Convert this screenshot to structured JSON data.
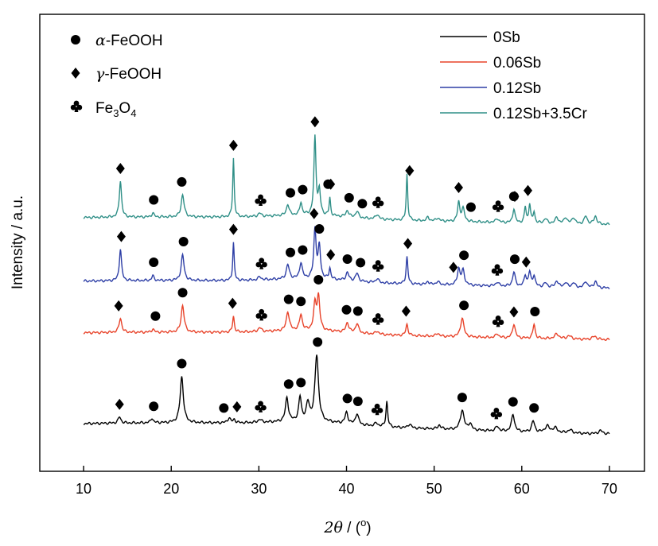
{
  "chart_data": {
    "type": "line",
    "xlabel": "2θ / (°)",
    "xlabel_parts": {
      "var": "2θ",
      "sep": " / (",
      "unit": "o",
      "close": ")"
    },
    "ylabel": "Intensity / a.u.",
    "xlim": [
      5,
      74
    ],
    "x_ticks": [
      "10",
      "20",
      "30",
      "40",
      "50",
      "60",
      "70"
    ],
    "y_ticks_shown": false,
    "legend_position": "top-right",
    "series": [
      {
        "name": "0Sb",
        "color": "#000000",
        "offset": 0,
        "baseline": 18,
        "peaks": [
          {
            "x": 14.1,
            "h": 8,
            "w": 0.18
          },
          {
            "x": 17.8,
            "h": 6,
            "w": 0.15
          },
          {
            "x": 21.2,
            "h": 58,
            "w": 0.22
          },
          {
            "x": 26.6,
            "h": 6,
            "w": 0.2
          },
          {
            "x": 27.2,
            "h": 4,
            "w": 0.15
          },
          {
            "x": 30.1,
            "h": 4,
            "w": 0.2
          },
          {
            "x": 33.2,
            "h": 30,
            "w": 0.2
          },
          {
            "x": 34.7,
            "h": 30,
            "w": 0.18
          },
          {
            "x": 35.6,
            "h": 22,
            "w": 0.22
          },
          {
            "x": 36.6,
            "h": 84,
            "w": 0.24
          },
          {
            "x": 40.0,
            "h": 14,
            "w": 0.2
          },
          {
            "x": 41.2,
            "h": 14,
            "w": 0.2
          },
          {
            "x": 43.4,
            "h": 4,
            "w": 0.2
          },
          {
            "x": 44.6,
            "h": 32,
            "w": 0.12
          },
          {
            "x": 47.2,
            "h": 5,
            "w": 0.2
          },
          {
            "x": 50.6,
            "h": 5,
            "w": 0.2
          },
          {
            "x": 53.2,
            "h": 25,
            "w": 0.25
          },
          {
            "x": 54.1,
            "h": 8,
            "w": 0.2
          },
          {
            "x": 57.2,
            "h": 6,
            "w": 0.2
          },
          {
            "x": 59.0,
            "h": 22,
            "w": 0.2
          },
          {
            "x": 61.3,
            "h": 14,
            "w": 0.2
          },
          {
            "x": 62.9,
            "h": 8,
            "w": 0.3
          },
          {
            "x": 63.8,
            "h": 6,
            "w": 0.3
          },
          {
            "x": 65.5,
            "h": 4,
            "w": 0.3
          },
          {
            "x": 69.0,
            "h": 4,
            "w": 0.3
          }
        ]
      },
      {
        "name": "0.06Sb",
        "color": "#e8432a",
        "offset": 120,
        "baseline": 12,
        "peaks": [
          {
            "x": 14.2,
            "h": 18,
            "w": 0.18
          },
          {
            "x": 17.9,
            "h": 4,
            "w": 0.15
          },
          {
            "x": 21.3,
            "h": 34,
            "w": 0.2
          },
          {
            "x": 27.1,
            "h": 20,
            "w": 0.12
          },
          {
            "x": 30.1,
            "h": 5,
            "w": 0.2
          },
          {
            "x": 33.3,
            "h": 24,
            "w": 0.2
          },
          {
            "x": 34.8,
            "h": 20,
            "w": 0.18
          },
          {
            "x": 36.4,
            "h": 32,
            "w": 0.18
          },
          {
            "x": 36.8,
            "h": 42,
            "w": 0.18
          },
          {
            "x": 40.1,
            "h": 12,
            "w": 0.2
          },
          {
            "x": 41.2,
            "h": 12,
            "w": 0.2
          },
          {
            "x": 43.5,
            "h": 4,
            "w": 0.2
          },
          {
            "x": 46.9,
            "h": 14,
            "w": 0.15
          },
          {
            "x": 50.4,
            "h": 4,
            "w": 0.2
          },
          {
            "x": 53.2,
            "h": 24,
            "w": 0.22
          },
          {
            "x": 57.2,
            "h": 5,
            "w": 0.2
          },
          {
            "x": 59.1,
            "h": 18,
            "w": 0.18
          },
          {
            "x": 61.4,
            "h": 18,
            "w": 0.15
          },
          {
            "x": 64.0,
            "h": 6,
            "w": 0.3
          },
          {
            "x": 65.4,
            "h": 4,
            "w": 0.3
          },
          {
            "x": 68.3,
            "h": 4,
            "w": 0.3
          }
        ]
      },
      {
        "name": "0.12Sb",
        "color": "#2e3fa6",
        "offset": 185,
        "baseline": 12,
        "peaks": [
          {
            "x": 14.2,
            "h": 40,
            "w": 0.15
          },
          {
            "x": 17.9,
            "h": 6,
            "w": 0.15
          },
          {
            "x": 21.3,
            "h": 32,
            "w": 0.2
          },
          {
            "x": 27.1,
            "h": 48,
            "w": 0.1
          },
          {
            "x": 30.1,
            "h": 4,
            "w": 0.2
          },
          {
            "x": 33.3,
            "h": 18,
            "w": 0.2
          },
          {
            "x": 34.8,
            "h": 20,
            "w": 0.18
          },
          {
            "x": 36.4,
            "h": 62,
            "w": 0.16
          },
          {
            "x": 36.9,
            "h": 40,
            "w": 0.16
          },
          {
            "x": 38.1,
            "h": 14,
            "w": 0.12
          },
          {
            "x": 40.1,
            "h": 10,
            "w": 0.2
          },
          {
            "x": 41.2,
            "h": 10,
            "w": 0.2
          },
          {
            "x": 43.5,
            "h": 5,
            "w": 0.2
          },
          {
            "x": 46.9,
            "h": 34,
            "w": 0.12
          },
          {
            "x": 49.3,
            "h": 4,
            "w": 0.15
          },
          {
            "x": 50.4,
            "h": 4,
            "w": 0.2
          },
          {
            "x": 52.8,
            "h": 20,
            "w": 0.18
          },
          {
            "x": 53.3,
            "h": 18,
            "w": 0.2
          },
          {
            "x": 57.2,
            "h": 5,
            "w": 0.2
          },
          {
            "x": 59.1,
            "h": 18,
            "w": 0.18
          },
          {
            "x": 60.4,
            "h": 14,
            "w": 0.15
          },
          {
            "x": 60.9,
            "h": 18,
            "w": 0.15
          },
          {
            "x": 61.4,
            "h": 14,
            "w": 0.15
          },
          {
            "x": 62.7,
            "h": 5,
            "w": 0.2
          },
          {
            "x": 64.0,
            "h": 8,
            "w": 0.2
          },
          {
            "x": 65.0,
            "h": 6,
            "w": 0.2
          },
          {
            "x": 65.9,
            "h": 6,
            "w": 0.2
          },
          {
            "x": 67.3,
            "h": 8,
            "w": 0.2
          },
          {
            "x": 68.4,
            "h": 8,
            "w": 0.2
          }
        ]
      },
      {
        "name": "0.12Sb+3.5Cr",
        "color": "#2f8f87",
        "offset": 265,
        "baseline": 12,
        "peaks": [
          {
            "x": 14.2,
            "h": 46,
            "w": 0.15
          },
          {
            "x": 17.9,
            "h": 5,
            "w": 0.15
          },
          {
            "x": 21.3,
            "h": 28,
            "w": 0.2
          },
          {
            "x": 27.1,
            "h": 74,
            "w": 0.1
          },
          {
            "x": 30.1,
            "h": 4,
            "w": 0.2
          },
          {
            "x": 33.3,
            "h": 14,
            "w": 0.18
          },
          {
            "x": 34.8,
            "h": 16,
            "w": 0.15
          },
          {
            "x": 36.4,
            "h": 98,
            "w": 0.14
          },
          {
            "x": 36.9,
            "h": 30,
            "w": 0.15
          },
          {
            "x": 38.1,
            "h": 22,
            "w": 0.1
          },
          {
            "x": 40.1,
            "h": 8,
            "w": 0.2
          },
          {
            "x": 41.2,
            "h": 8,
            "w": 0.2
          },
          {
            "x": 43.5,
            "h": 6,
            "w": 0.2
          },
          {
            "x": 46.9,
            "h": 58,
            "w": 0.1
          },
          {
            "x": 49.3,
            "h": 5,
            "w": 0.15
          },
          {
            "x": 50.4,
            "h": 4,
            "w": 0.2
          },
          {
            "x": 52.8,
            "h": 24,
            "w": 0.15
          },
          {
            "x": 53.3,
            "h": 16,
            "w": 0.2
          },
          {
            "x": 57.2,
            "h": 5,
            "w": 0.2
          },
          {
            "x": 59.1,
            "h": 18,
            "w": 0.15
          },
          {
            "x": 60.4,
            "h": 20,
            "w": 0.12
          },
          {
            "x": 60.9,
            "h": 24,
            "w": 0.12
          },
          {
            "x": 61.4,
            "h": 14,
            "w": 0.12
          },
          {
            "x": 62.7,
            "h": 6,
            "w": 0.2
          },
          {
            "x": 64.0,
            "h": 8,
            "w": 0.2
          },
          {
            "x": 65.0,
            "h": 8,
            "w": 0.2
          },
          {
            "x": 65.9,
            "h": 8,
            "w": 0.2
          },
          {
            "x": 67.3,
            "h": 10,
            "w": 0.2
          },
          {
            "x": 68.4,
            "h": 10,
            "w": 0.2
          }
        ]
      }
    ],
    "phase_legend": [
      {
        "symbol": "circle",
        "prefix": "α",
        "text": "-FeOOH"
      },
      {
        "symbol": "diamond",
        "prefix": "γ",
        "text": "-FeOOH"
      },
      {
        "symbol": "club",
        "formula": [
          "Fe",
          "3",
          "O",
          "4"
        ]
      }
    ],
    "markers": [
      {
        "series": 0,
        "items": [
          {
            "x": 14.1,
            "s": "diamond"
          },
          {
            "x": 18.0,
            "s": "circle"
          },
          {
            "x": 21.2,
            "s": "circle"
          },
          {
            "x": 26.0,
            "s": "circle"
          },
          {
            "x": 27.5,
            "s": "diamond"
          },
          {
            "x": 30.2,
            "s": "club"
          },
          {
            "x": 33.4,
            "s": "circle"
          },
          {
            "x": 34.8,
            "s": "circle"
          },
          {
            "x": 36.7,
            "s": "circle"
          },
          {
            "x": 40.1,
            "s": "circle"
          },
          {
            "x": 41.3,
            "s": "circle"
          },
          {
            "x": 43.5,
            "s": "club"
          },
          {
            "x": 53.2,
            "s": "circle"
          },
          {
            "x": 57.1,
            "s": "club"
          },
          {
            "x": 59.0,
            "s": "circle"
          },
          {
            "x": 61.4,
            "s": "circle"
          }
        ]
      },
      {
        "series": 1,
        "items": [
          {
            "x": 14.0,
            "s": "diamond"
          },
          {
            "x": 18.2,
            "s": "circle"
          },
          {
            "x": 21.3,
            "s": "circle"
          },
          {
            "x": 27.0,
            "s": "diamond"
          },
          {
            "x": 30.3,
            "s": "club"
          },
          {
            "x": 33.4,
            "s": "circle"
          },
          {
            "x": 34.8,
            "s": "circle"
          },
          {
            "x": 36.8,
            "s": "circle"
          },
          {
            "x": 40.0,
            "s": "circle"
          },
          {
            "x": 41.3,
            "s": "circle"
          },
          {
            "x": 43.6,
            "s": "club"
          },
          {
            "x": 46.8,
            "s": "diamond"
          },
          {
            "x": 53.4,
            "s": "circle"
          },
          {
            "x": 57.3,
            "s": "club"
          },
          {
            "x": 59.1,
            "s": "diamond"
          },
          {
            "x": 61.5,
            "s": "circle"
          }
        ]
      },
      {
        "series": 2,
        "items": [
          {
            "x": 14.3,
            "s": "diamond"
          },
          {
            "x": 18.0,
            "s": "circle"
          },
          {
            "x": 21.4,
            "s": "circle"
          },
          {
            "x": 27.1,
            "s": "diamond"
          },
          {
            "x": 30.3,
            "s": "club"
          },
          {
            "x": 33.6,
            "s": "circle"
          },
          {
            "x": 35.0,
            "s": "circle"
          },
          {
            "x": 36.3,
            "s": "diamond"
          },
          {
            "x": 36.9,
            "s": "circle"
          },
          {
            "x": 38.2,
            "s": "diamond"
          },
          {
            "x": 40.1,
            "s": "circle"
          },
          {
            "x": 41.6,
            "s": "circle"
          },
          {
            "x": 43.6,
            "s": "club"
          },
          {
            "x": 47.0,
            "s": "diamond"
          },
          {
            "x": 52.2,
            "s": "diamond"
          },
          {
            "x": 53.4,
            "s": "circle"
          },
          {
            "x": 57.2,
            "s": "club"
          },
          {
            "x": 59.2,
            "s": "circle"
          },
          {
            "x": 60.5,
            "s": "diamond"
          }
        ]
      },
      {
        "series": 3,
        "items": [
          {
            "x": 14.2,
            "s": "diamond"
          },
          {
            "x": 18.0,
            "s": "circle"
          },
          {
            "x": 21.2,
            "s": "circle"
          },
          {
            "x": 27.1,
            "s": "diamond"
          },
          {
            "x": 30.2,
            "s": "club"
          },
          {
            "x": 33.6,
            "s": "circle"
          },
          {
            "x": 35.0,
            "s": "circle"
          },
          {
            "x": 36.4,
            "s": "diamond"
          },
          {
            "x": 37.9,
            "s": "circle"
          },
          {
            "x": 38.2,
            "s": "diamond"
          },
          {
            "x": 40.3,
            "s": "circle"
          },
          {
            "x": 41.8,
            "s": "circle"
          },
          {
            "x": 43.6,
            "s": "club"
          },
          {
            "x": 47.2,
            "s": "diamond"
          },
          {
            "x": 52.8,
            "s": "diamond"
          },
          {
            "x": 54.2,
            "s": "circle"
          },
          {
            "x": 57.3,
            "s": "club"
          },
          {
            "x": 59.1,
            "s": "circle"
          },
          {
            "x": 59.2,
            "s": "diamond"
          },
          {
            "x": 60.7,
            "s": "diamond"
          }
        ]
      }
    ]
  }
}
